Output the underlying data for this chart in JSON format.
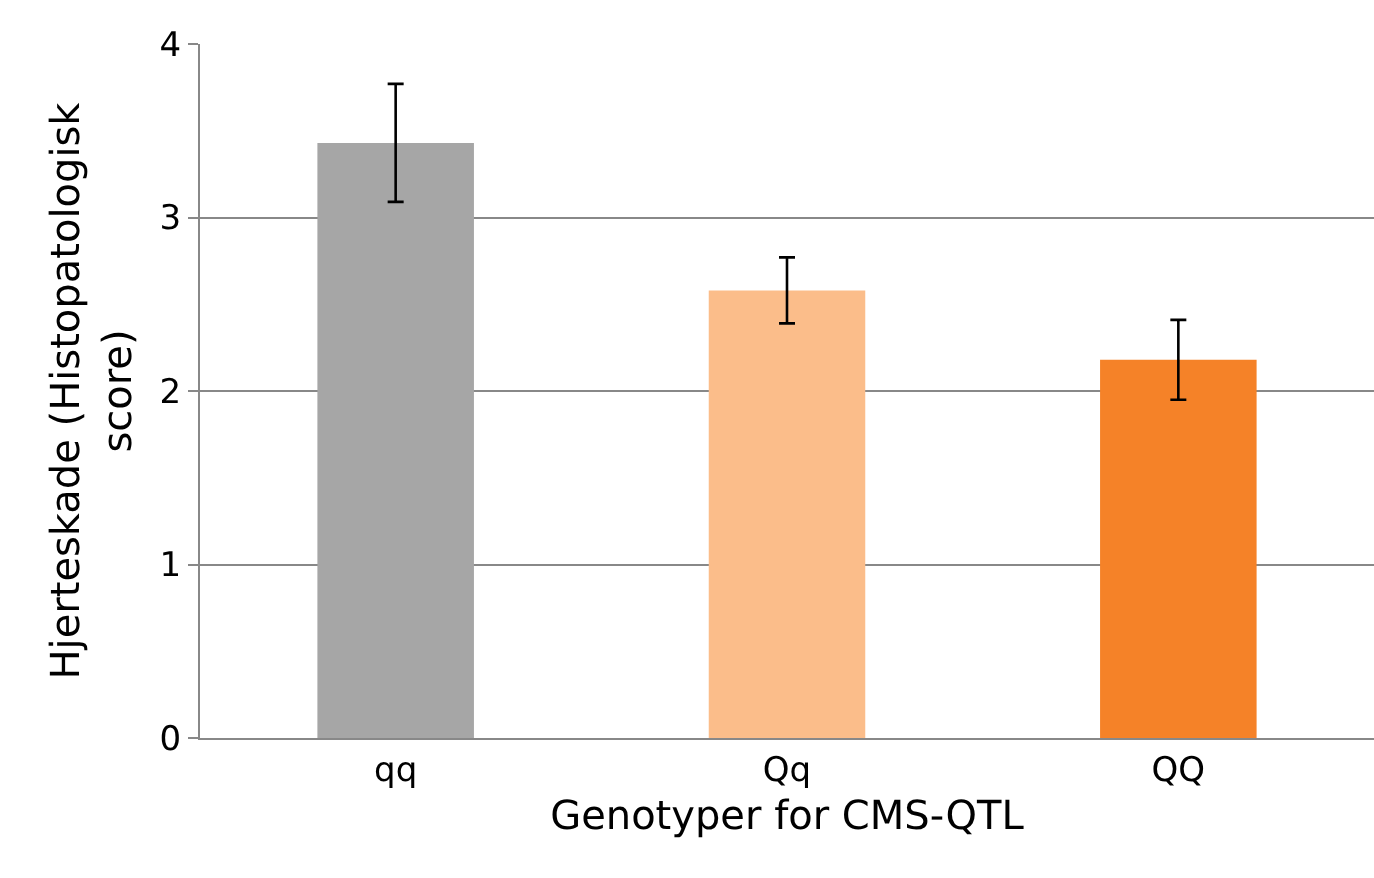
{
  "chart_data": {
    "type": "bar",
    "xlabel": "Genotyper for CMS-QTL",
    "ylabel": "Hjerteskade (Histopatologisk score)",
    "categories": [
      "qq",
      "Qq",
      "QQ"
    ],
    "values": [
      3.43,
      2.58,
      2.18
    ],
    "errors": [
      0.34,
      0.19,
      0.23
    ],
    "colors": [
      "#a6a6a6",
      "#fbbd8a",
      "#f58228"
    ],
    "ylim": [
      0,
      4
    ],
    "yticks": [
      0,
      1,
      2,
      3,
      4
    ],
    "grid": "y",
    "legend": false
  }
}
